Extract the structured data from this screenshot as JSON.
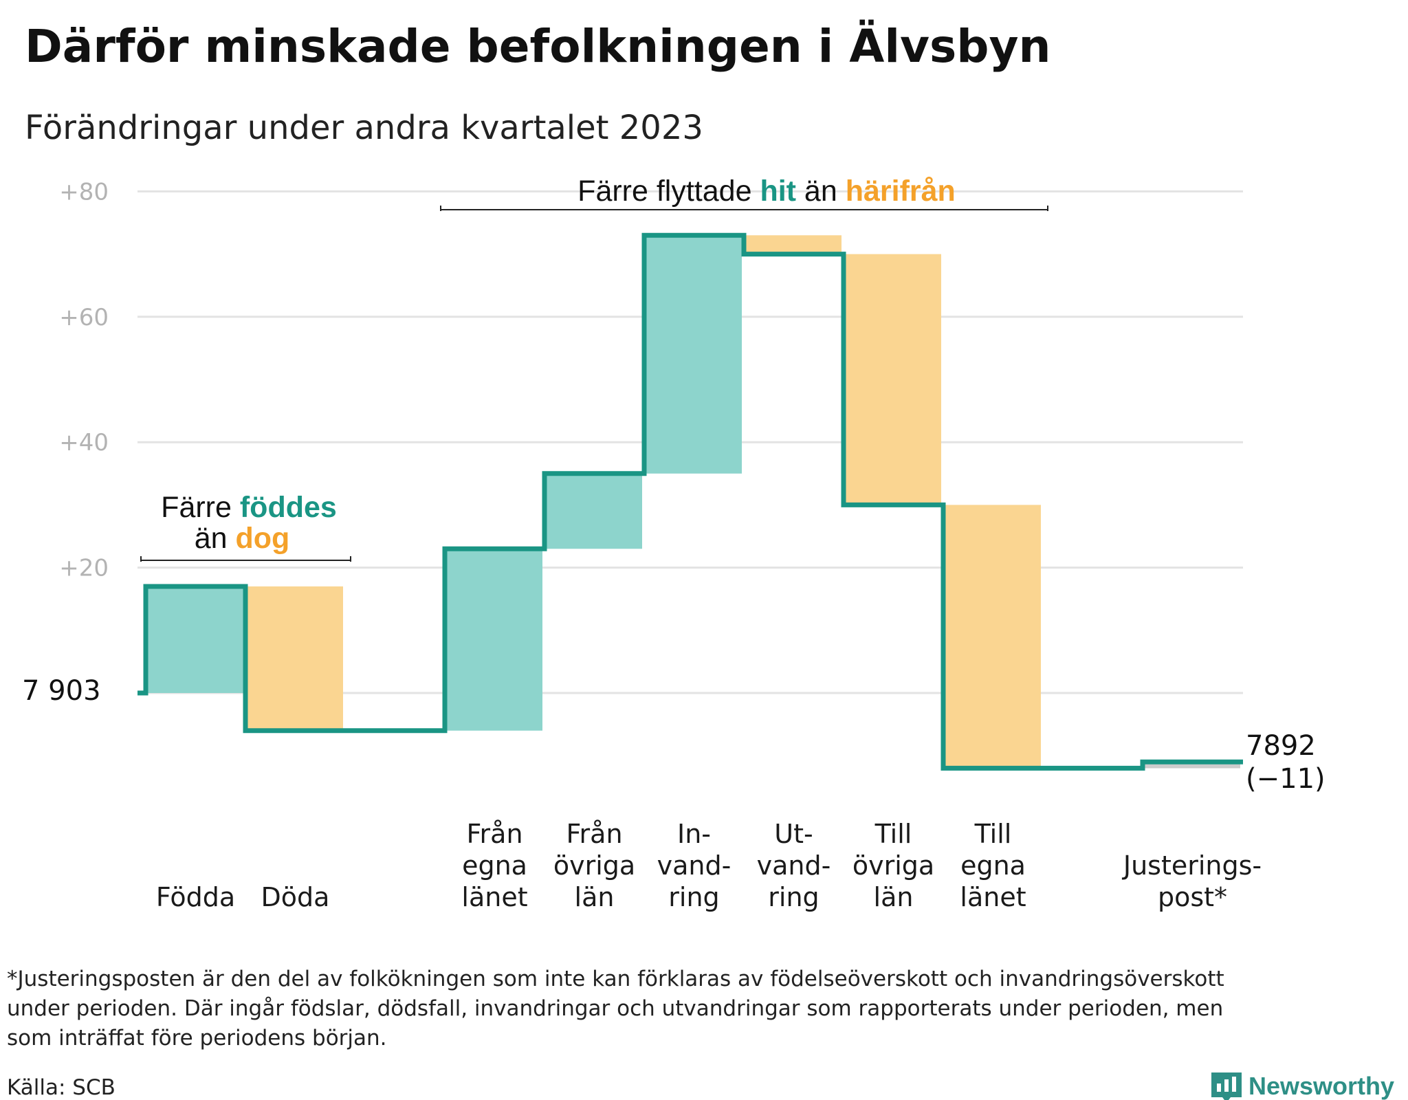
{
  "title": "Därför minskade befolkningen i Älvsbyn",
  "subtitle": "Förändringar under andra kvartalet 2023",
  "colors": {
    "increase": "#8dd4cc",
    "decrease": "#fad591",
    "adjustment": "#cccccc",
    "line": "#1a9584",
    "teal_text": "#1a9584",
    "orange_text": "#f4a12a",
    "grid": "#e3e3e3"
  },
  "chart_data": {
    "type": "bar",
    "subtype": "waterfall",
    "start_value": 7903,
    "start_label": "7  903",
    "end_value": 7892,
    "end_label": "7 892",
    "end_change_label": "(−11)",
    "y_ticks": [
      {
        "value": 20,
        "label": "+20"
      },
      {
        "value": 40,
        "label": "+40"
      },
      {
        "value": 60,
        "label": "+60"
      },
      {
        "value": 80,
        "label": "+80"
      }
    ],
    "ylim": [
      -12,
      82
    ],
    "grid": true,
    "steps": [
      {
        "label": "Födda",
        "change": 17,
        "kind": "increase"
      },
      {
        "label": "Döda",
        "change": -23,
        "kind": "decrease"
      },
      {
        "label": "",
        "change": 0,
        "kind": "spacer"
      },
      {
        "label": "Från\negna\nlänet",
        "change": 29,
        "kind": "increase"
      },
      {
        "label": "Från\növriga\nlän",
        "change": 12,
        "kind": "increase"
      },
      {
        "label": "In-\nvand-\nring",
        "change": 38,
        "kind": "increase"
      },
      {
        "label": "Ut-\nvand-\nring",
        "change": -3,
        "kind": "decrease"
      },
      {
        "label": "Till\növriga\nlän",
        "change": -40,
        "kind": "decrease"
      },
      {
        "label": "Till\negna\nlänet",
        "change": -42,
        "kind": "decrease"
      },
      {
        "label": "",
        "change": 0,
        "kind": "spacer"
      },
      {
        "label": "Justerings-\npost*",
        "change": 1,
        "kind": "adjustment"
      }
    ],
    "annotations": [
      {
        "parts": [
          "Färre ",
          "föddes"
        ],
        "line2": [
          "än ",
          "dog"
        ]
      },
      {
        "parts": [
          "Färre flyttade ",
          "hit",
          " än ",
          "härifrån"
        ]
      }
    ]
  },
  "footnote": {
    "lines": [
      "*Justeringsposten är den del av folkökningen som inte kan förklaras av födelseöverskott och invandringsöverskott",
      "under perioden. Där ingår födslar, dödsfall, invandringar och utvandringar som rapporterats under perioden, men",
      "som inträffat före periodens början."
    ]
  },
  "source": "Källa: SCB",
  "brand": {
    "name": "Newsworthy",
    "icon": "bar-chart-speech-bubble-icon"
  }
}
